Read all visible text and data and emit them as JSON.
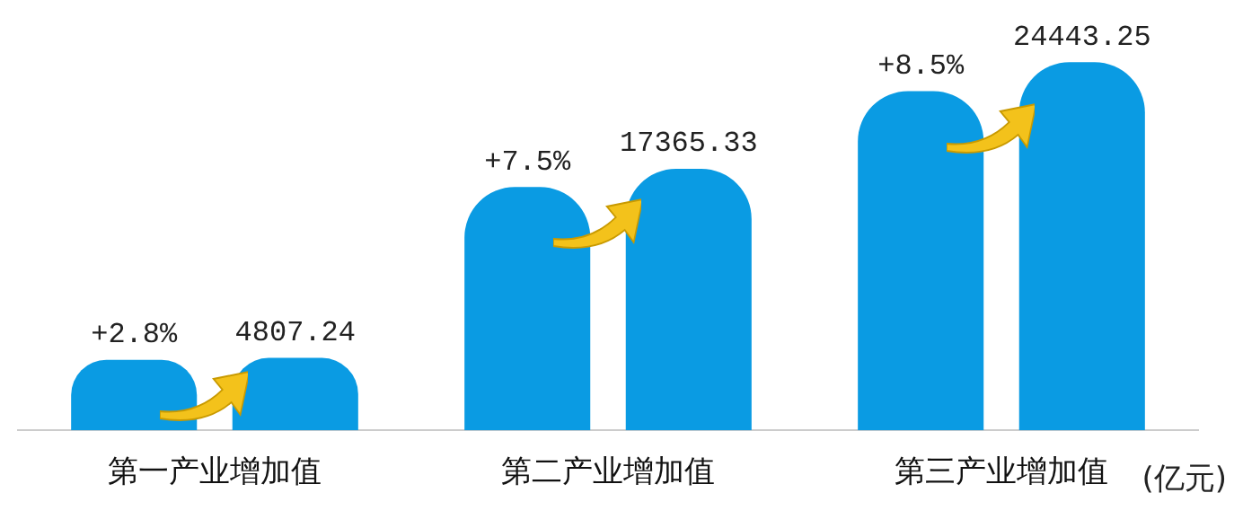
{
  "chart_data": {
    "type": "bar",
    "tick_labels": "x",
    "categories": [
      "第一产业增加值",
      "第二产业增加值",
      "第三产业增加值"
    ],
    "series": [
      {
        "color": "#0a9be3",
        "values": [
          4676,
          16154,
          22528
        ]
      },
      {
        "color": "#0a9be3",
        "values": [
          4807.24,
          17365.33,
          24443.25
        ],
        "data_labels": true
      }
    ],
    "annotations": [
      "(亿元)",
      "+2.8%",
      "+7.5%",
      "+8.5%"
    ]
  }
}
